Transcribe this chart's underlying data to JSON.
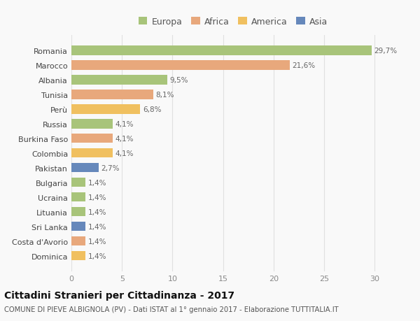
{
  "countries": [
    "Romania",
    "Marocco",
    "Albania",
    "Tunisia",
    "Perù",
    "Russia",
    "Burkina Faso",
    "Colombia",
    "Pakistan",
    "Bulgaria",
    "Ucraina",
    "Lituania",
    "Sri Lanka",
    "Costa d'Avorio",
    "Dominica"
  ],
  "values": [
    29.7,
    21.6,
    9.5,
    8.1,
    6.8,
    4.1,
    4.1,
    4.1,
    2.7,
    1.4,
    1.4,
    1.4,
    1.4,
    1.4,
    1.4
  ],
  "labels": [
    "29,7%",
    "21,6%",
    "9,5%",
    "8,1%",
    "6,8%",
    "4,1%",
    "4,1%",
    "4,1%",
    "2,7%",
    "1,4%",
    "1,4%",
    "1,4%",
    "1,4%",
    "1,4%",
    "1,4%"
  ],
  "colors": [
    "#a8c47a",
    "#e8a87c",
    "#a8c47a",
    "#e8a87c",
    "#f0c060",
    "#a8c47a",
    "#e8a87c",
    "#f0c060",
    "#6688bb",
    "#a8c47a",
    "#a8c47a",
    "#a8c47a",
    "#6688bb",
    "#e8a87c",
    "#f0c060"
  ],
  "legend_labels": [
    "Europa",
    "Africa",
    "America",
    "Asia"
  ],
  "legend_colors": [
    "#a8c47a",
    "#e8a87c",
    "#f0c060",
    "#6688bb"
  ],
  "title": "Cittadini Stranieri per Cittadinanza - 2017",
  "subtitle": "COMUNE DI PIEVE ALBIGNOLA (PV) - Dati ISTAT al 1° gennaio 2017 - Elaborazione TUTTITALIA.IT",
  "xlim": [
    0,
    32
  ],
  "xticks": [
    0,
    5,
    10,
    15,
    20,
    25,
    30
  ],
  "bg_color": "#f9f9f9",
  "grid_color": "#e0e0e0"
}
